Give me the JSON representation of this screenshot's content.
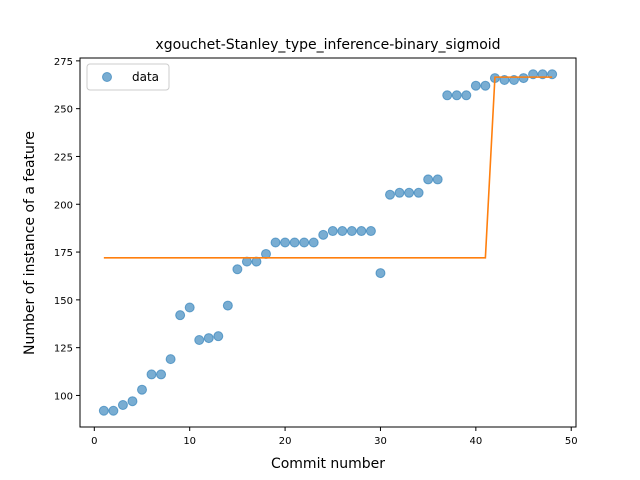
{
  "chart_data": {
    "type": "scatter",
    "title": "xgouchet-Stanley_type_inference-binary_sigmoid",
    "xlabel": "Commit number",
    "ylabel": "Number of instance of a feature",
    "xlim": [
      -1.5,
      50.5
    ],
    "ylim": [
      83.5,
      276.5
    ],
    "xticks": [
      0,
      10,
      20,
      30,
      40,
      50
    ],
    "yticks": [
      100,
      125,
      150,
      175,
      200,
      225,
      250,
      275
    ],
    "grid": false,
    "legend_position": "upper-left",
    "series": [
      {
        "name": "data",
        "kind": "scatter",
        "color": "#1f77b4",
        "x": [
          1,
          2,
          3,
          4,
          5,
          6,
          7,
          8,
          9,
          10,
          11,
          12,
          13,
          14,
          15,
          16,
          17,
          18,
          19,
          20,
          21,
          22,
          23,
          24,
          25,
          26,
          27,
          28,
          29,
          30,
          31,
          32,
          33,
          34,
          35,
          36,
          37,
          38,
          39,
          40,
          41,
          42,
          43,
          44,
          45,
          46,
          47,
          48
        ],
        "y": [
          92,
          92,
          95,
          97,
          103,
          111,
          111,
          119,
          142,
          146,
          129,
          130,
          131,
          147,
          166,
          170,
          170,
          174,
          180,
          180,
          180,
          180,
          180,
          184,
          186,
          186,
          186,
          186,
          186,
          164,
          205,
          206,
          206,
          206,
          213,
          213,
          257,
          257,
          257,
          262,
          262,
          266,
          265,
          265,
          266,
          268,
          268,
          268
        ]
      },
      {
        "kind": "line",
        "color": "#ff7f0e",
        "x": [
          1,
          41,
          42,
          48
        ],
        "y": [
          172,
          172,
          266.5,
          266.5
        ]
      }
    ]
  }
}
